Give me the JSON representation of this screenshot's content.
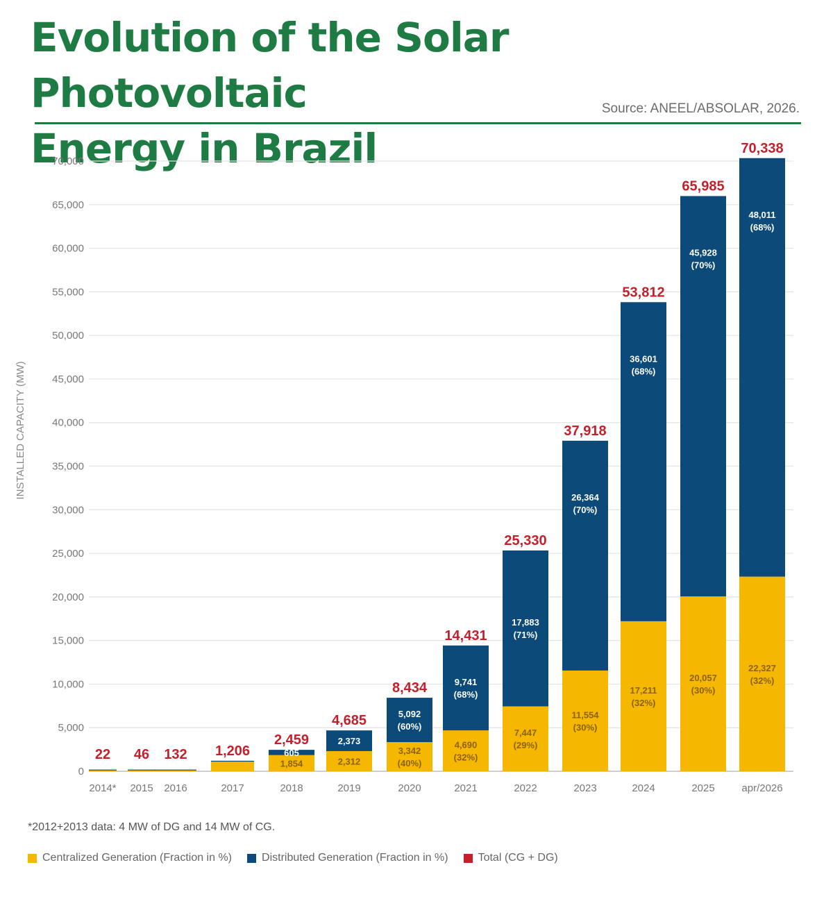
{
  "title": [
    "Evolution of the Solar Photovoltaic",
    "Energy in Brazil"
  ],
  "source": "Source: ANEEL/ABSOLAR, 2026.",
  "footnote": "*2012+2013 data: 4 MW of DG and 14 MW of CG.",
  "colors": {
    "cg": "#f6b700",
    "dg": "#0b4a79",
    "total": "#c41f2b",
    "brand": "#1e7b43"
  },
  "legend": [
    {
      "label": "Centralized Generation (Fraction in %)",
      "color": "#f6b700"
    },
    {
      "label": "Distributed Generation (Fraction in %)",
      "color": "#0b4a79"
    },
    {
      "label": "Total (CG + DG)",
      "color": "#c41f2b"
    }
  ],
  "chart_data": {
    "type": "bar",
    "stacked": true,
    "ylabel": "INSTALLED CAPACITY (MW)",
    "ylim": [
      0,
      70000
    ],
    "yticks": [
      "0",
      "5,000",
      "10,000",
      "15,000",
      "20,000",
      "25,000",
      "30,000",
      "35,000",
      "40,000",
      "45,000",
      "50,000",
      "55,000",
      "60,000",
      "65,000",
      "70,000"
    ],
    "grid": true,
    "legend_position": "bottom",
    "categories": [
      "2014*",
      "2015",
      "2016",
      "2017",
      "2018",
      "2019",
      "2020",
      "2021",
      "2022",
      "2023",
      "2024",
      "2025",
      "apr/2026"
    ],
    "series": [
      {
        "name": "Centralized Generation (Fraction in %)",
        "values": [
          15,
          30,
          80,
          1100,
          1854,
          2312,
          3342,
          4690,
          7447,
          11554,
          17211,
          20057,
          22327
        ],
        "labels": [
          "",
          "",
          "",
          "",
          "1,854",
          "2,312",
          "3,342\n(40%)",
          "4,690\n(32%)",
          "7,447\n(29%)",
          "11,554\n(30%)",
          "17,211\n(32%)",
          "20,057\n(30%)",
          "22,327\n(32%)"
        ]
      },
      {
        "name": "Distributed Generation (Fraction in %)",
        "values": [
          7,
          16,
          52,
          106,
          605,
          2373,
          5092,
          9741,
          17883,
          26364,
          36601,
          45928,
          48011
        ],
        "labels": [
          "",
          "",
          "",
          "",
          "605",
          "2,373",
          "5,092\n(60%)",
          "9,741\n(68%)",
          "17,883\n(71%)",
          "26,364\n(70%)",
          "36,601\n(68%)",
          "45,928\n(70%)",
          "48,011\n(68%)"
        ]
      }
    ],
    "totals": [
      "22",
      "46",
      "132",
      "1,206",
      "2,459",
      "4,685",
      "8,434",
      "14,431",
      "25,330",
      "37,918",
      "53,812",
      "65,985",
      "70,338"
    ],
    "total_values": [
      22,
      46,
      132,
      1206,
      2459,
      4685,
      8434,
      14431,
      25330,
      37918,
      53812,
      65985,
      70338
    ]
  }
}
